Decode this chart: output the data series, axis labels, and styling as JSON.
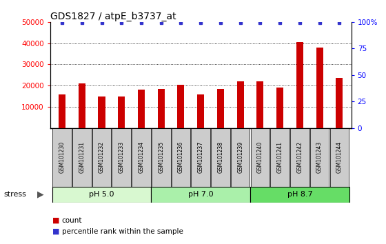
{
  "title": "GDS1827 / atpE_b3737_at",
  "samples": [
    "GSM101230",
    "GSM101231",
    "GSM101232",
    "GSM101233",
    "GSM101234",
    "GSM101235",
    "GSM101236",
    "GSM101237",
    "GSM101238",
    "GSM101239",
    "GSM101240",
    "GSM101241",
    "GSM101242",
    "GSM101243",
    "GSM101244"
  ],
  "counts": [
    16000,
    21000,
    15000,
    15000,
    18000,
    18500,
    20500,
    16000,
    18500,
    22000,
    22000,
    19000,
    40500,
    38000,
    23500
  ],
  "percentile_ranks": [
    99,
    99,
    99,
    99,
    99,
    99,
    99,
    99,
    99,
    99,
    99,
    99,
    99,
    99,
    99
  ],
  "bar_color": "#cc0000",
  "dot_color": "#3333cc",
  "ylim_left": [
    0,
    50000
  ],
  "ylim_right": [
    0,
    100
  ],
  "yticks_left": [
    10000,
    20000,
    30000,
    40000,
    50000
  ],
  "yticks_right": [
    0,
    25,
    50,
    75,
    100
  ],
  "ytick_labels_left": [
    "10000",
    "20000",
    "30000",
    "40000",
    "50000"
  ],
  "ytick_labels_right": [
    "0",
    "25",
    "50",
    "75",
    "100%"
  ],
  "groups": [
    {
      "label": "pH 5.0",
      "start": 0,
      "end": 4,
      "color": "#d8f8d0"
    },
    {
      "label": "pH 7.0",
      "start": 5,
      "end": 9,
      "color": "#aaf0aa"
    },
    {
      "label": "pH 8.7",
      "start": 10,
      "end": 14,
      "color": "#66dd66"
    }
  ],
  "stress_label": "stress",
  "legend_count_label": "count",
  "legend_pct_label": "percentile rank within the sample",
  "background_color": "#ffffff",
  "tick_area_bg": "#cccccc",
  "grid_color": "#000000",
  "title_fontsize": 10,
  "bar_width": 0.35
}
